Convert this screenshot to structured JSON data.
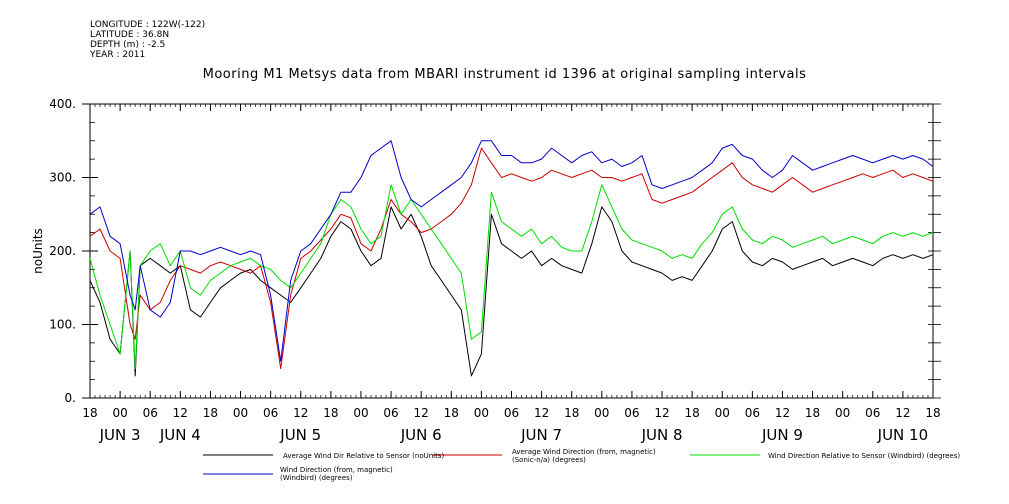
{
  "meta": {
    "longitude": "LONGITUDE : 122W(-122)",
    "latitude": "LATITUDE : 36.8N",
    "depth": "DEPTH (m) : -2.5",
    "year": "YEAR : 2011"
  },
  "chart_data": {
    "type": "line",
    "title": "Mooring M1 Metsys data from MBARI instrument id 1396 at original sampling intervals",
    "ylabel": "noUnits",
    "ylim": [
      0,
      400
    ],
    "yticks": [
      "0.",
      "100.",
      "200.",
      "300.",
      "400."
    ],
    "ytick_values": [
      0,
      100,
      200,
      300,
      400
    ],
    "xlim_hours": [
      0,
      168
    ],
    "xticks": [
      "18",
      "00",
      "06",
      "12",
      "18",
      "00",
      "06",
      "12",
      "18",
      "00",
      "06",
      "12",
      "18",
      "00",
      "06",
      "12",
      "18",
      "00",
      "06",
      "12",
      "18",
      "00",
      "06",
      "12",
      "18",
      "00",
      "06",
      "12",
      "18"
    ],
    "day_labels": [
      {
        "label": "JUN  3",
        "hour": 6
      },
      {
        "label": "JUN  4",
        "hour": 18
      },
      {
        "label": "JUN  5",
        "hour": 42
      },
      {
        "label": "JUN  6",
        "hour": 66
      },
      {
        "label": "JUN  7",
        "hour": 90
      },
      {
        "label": "JUN  8",
        "hour": 114
      },
      {
        "label": "JUN  9",
        "hour": 138
      },
      {
        "label": "JUN 10",
        "hour": 162
      }
    ],
    "series": [
      {
        "name": "Average Wind Dir Relative to Sensor (noUnits)",
        "color": "#000000",
        "x": [
          0,
          2,
          4,
          6,
          8,
          9,
          10,
          12,
          14,
          16,
          18,
          20,
          22,
          24,
          26,
          28,
          30,
          32,
          34,
          36,
          38,
          40,
          42,
          44,
          46,
          48,
          50,
          52,
          54,
          56,
          58,
          60,
          62,
          64,
          66,
          68,
          70,
          72,
          74,
          76,
          78,
          80,
          82,
          84,
          86,
          88,
          90,
          92,
          94,
          96,
          98,
          100,
          102,
          104,
          106,
          108,
          110,
          112,
          114,
          116,
          118,
          120,
          122,
          124,
          126,
          128,
          130,
          132,
          134,
          136,
          138,
          140,
          142,
          144,
          146,
          148,
          150,
          152,
          154,
          156,
          158,
          160,
          162,
          164,
          166,
          168
        ],
        "y": [
          160,
          130,
          80,
          60,
          200,
          30,
          180,
          190,
          180,
          170,
          180,
          120,
          110,
          130,
          150,
          160,
          170,
          175,
          160,
          150,
          140,
          130,
          150,
          170,
          190,
          220,
          240,
          230,
          200,
          180,
          190,
          260,
          230,
          250,
          220,
          180,
          160,
          140,
          120,
          30,
          60,
          250,
          210,
          200,
          190,
          200,
          180,
          190,
          180,
          175,
          170,
          210,
          260,
          240,
          200,
          185,
          180,
          175,
          170,
          160,
          165,
          160,
          180,
          200,
          230,
          240,
          200,
          185,
          180,
          190,
          185,
          175,
          180,
          185,
          190,
          180,
          185,
          190,
          185,
          180,
          190,
          195,
          190,
          195,
          190,
          195
        ]
      },
      {
        "name": "Average Wind Direction (from, magnetic) (Sonic-n/a) (degrees)",
        "color": "#cc0000",
        "x": [
          0,
          2,
          4,
          6,
          8,
          9,
          10,
          12,
          14,
          16,
          18,
          20,
          22,
          24,
          26,
          28,
          30,
          32,
          34,
          36,
          38,
          40,
          42,
          44,
          46,
          48,
          50,
          52,
          54,
          56,
          58,
          60,
          62,
          64,
          66,
          68,
          70,
          72,
          74,
          76,
          78,
          80,
          82,
          84,
          86,
          88,
          90,
          92,
          94,
          96,
          98,
          100,
          102,
          104,
          106,
          108,
          110,
          112,
          114,
          116,
          118,
          120,
          122,
          124,
          126,
          128,
          130,
          132,
          134,
          136,
          138,
          140,
          142,
          144,
          146,
          148,
          150,
          152,
          154,
          156,
          158,
          160,
          162,
          164,
          166,
          168
        ],
        "y": [
          220,
          230,
          200,
          190,
          100,
          80,
          140,
          120,
          130,
          160,
          180,
          175,
          170,
          180,
          185,
          180,
          175,
          170,
          180,
          130,
          40,
          140,
          190,
          200,
          215,
          230,
          250,
          245,
          210,
          200,
          230,
          270,
          250,
          240,
          225,
          230,
          240,
          250,
          265,
          290,
          340,
          320,
          300,
          305,
          300,
          295,
          300,
          310,
          305,
          300,
          305,
          310,
          300,
          300,
          295,
          300,
          305,
          270,
          265,
          270,
          275,
          280,
          290,
          300,
          310,
          320,
          300,
          290,
          285,
          280,
          290,
          300,
          290,
          280,
          285,
          290,
          295,
          300,
          305,
          300,
          305,
          310,
          300,
          305,
          300,
          295
        ]
      },
      {
        "name": "Wind Direction Relative to Sensor (Windbird) (degrees)",
        "color": "#00dd00",
        "x": [
          0,
          2,
          4,
          6,
          8,
          9,
          10,
          12,
          14,
          16,
          18,
          20,
          22,
          24,
          26,
          28,
          30,
          32,
          34,
          36,
          38,
          40,
          42,
          44,
          46,
          48,
          50,
          52,
          54,
          56,
          58,
          60,
          62,
          64,
          66,
          68,
          70,
          72,
          74,
          76,
          78,
          80,
          82,
          84,
          86,
          88,
          90,
          92,
          94,
          96,
          98,
          100,
          102,
          104,
          106,
          108,
          110,
          112,
          114,
          116,
          118,
          120,
          122,
          124,
          126,
          128,
          130,
          132,
          134,
          136,
          138,
          140,
          142,
          144,
          146,
          148,
          150,
          152,
          154,
          156,
          158,
          160,
          162,
          164,
          166,
          168
        ],
        "y": [
          190,
          140,
          100,
          60,
          200,
          40,
          180,
          200,
          210,
          180,
          200,
          150,
          140,
          160,
          170,
          180,
          185,
          190,
          180,
          175,
          160,
          150,
          170,
          190,
          210,
          250,
          270,
          260,
          230,
          210,
          220,
          290,
          250,
          270,
          250,
          230,
          210,
          190,
          170,
          80,
          90,
          280,
          240,
          230,
          220,
          230,
          210,
          220,
          205,
          200,
          200,
          240,
          290,
          260,
          230,
          215,
          210,
          205,
          200,
          190,
          195,
          190,
          210,
          225,
          250,
          260,
          230,
          215,
          210,
          220,
          215,
          205,
          210,
          215,
          220,
          210,
          215,
          220,
          215,
          210,
          220,
          225,
          220,
          225,
          220,
          225
        ]
      },
      {
        "name": "Wind Direction (from, magnetic) (Windbird) (degrees)",
        "color": "#0000cc",
        "x": [
          0,
          2,
          4,
          6,
          8,
          9,
          10,
          12,
          14,
          16,
          18,
          20,
          22,
          24,
          26,
          28,
          30,
          32,
          34,
          36,
          38,
          40,
          42,
          44,
          46,
          48,
          50,
          52,
          54,
          56,
          58,
          60,
          62,
          64,
          66,
          68,
          70,
          72,
          74,
          76,
          78,
          80,
          82,
          84,
          86,
          88,
          90,
          92,
          94,
          96,
          98,
          100,
          102,
          104,
          106,
          108,
          110,
          112,
          114,
          116,
          118,
          120,
          122,
          124,
          126,
          128,
          130,
          132,
          134,
          136,
          138,
          140,
          142,
          144,
          146,
          148,
          150,
          152,
          154,
          156,
          158,
          160,
          162,
          164,
          166,
          168
        ],
        "y": [
          250,
          260,
          220,
          210,
          140,
          120,
          180,
          120,
          110,
          130,
          200,
          200,
          195,
          200,
          205,
          200,
          195,
          200,
          195,
          140,
          50,
          160,
          200,
          210,
          230,
          250,
          280,
          280,
          300,
          330,
          340,
          350,
          300,
          270,
          260,
          270,
          280,
          290,
          300,
          320,
          350,
          350,
          330,
          330,
          320,
          320,
          325,
          340,
          330,
          320,
          330,
          335,
          320,
          325,
          315,
          320,
          330,
          290,
          285,
          290,
          295,
          300,
          310,
          320,
          340,
          345,
          330,
          325,
          310,
          300,
          310,
          330,
          320,
          310,
          315,
          320,
          325,
          330,
          325,
          320,
          325,
          330,
          325,
          330,
          325,
          315
        ]
      }
    ]
  }
}
